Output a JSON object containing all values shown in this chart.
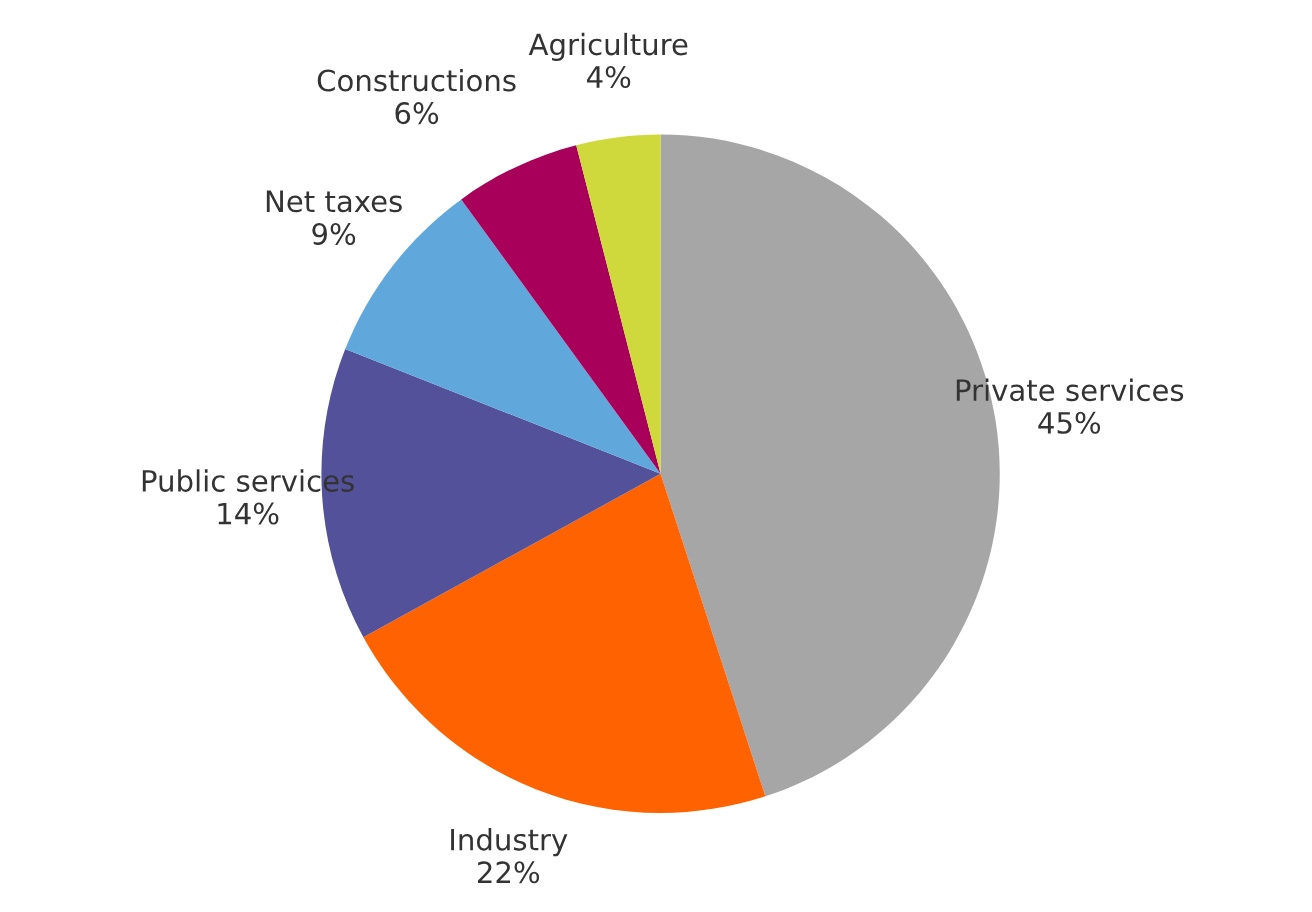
{
  "chart_data": {
    "type": "pie",
    "categories": [
      "Private services",
      "Industry",
      "Public services",
      "Net taxes",
      "Constructions",
      "Agriculture"
    ],
    "values": [
      45,
      22,
      14,
      9,
      6,
      4
    ],
    "value_labels": [
      "45%",
      "22%",
      "14%",
      "9%",
      "6%",
      "4%"
    ],
    "colors": [
      "#a6a6a6",
      "#ff6200",
      "#525199",
      "#60a8dc",
      "#a8005a",
      "#d0d93c"
    ],
    "legend": false
  }
}
